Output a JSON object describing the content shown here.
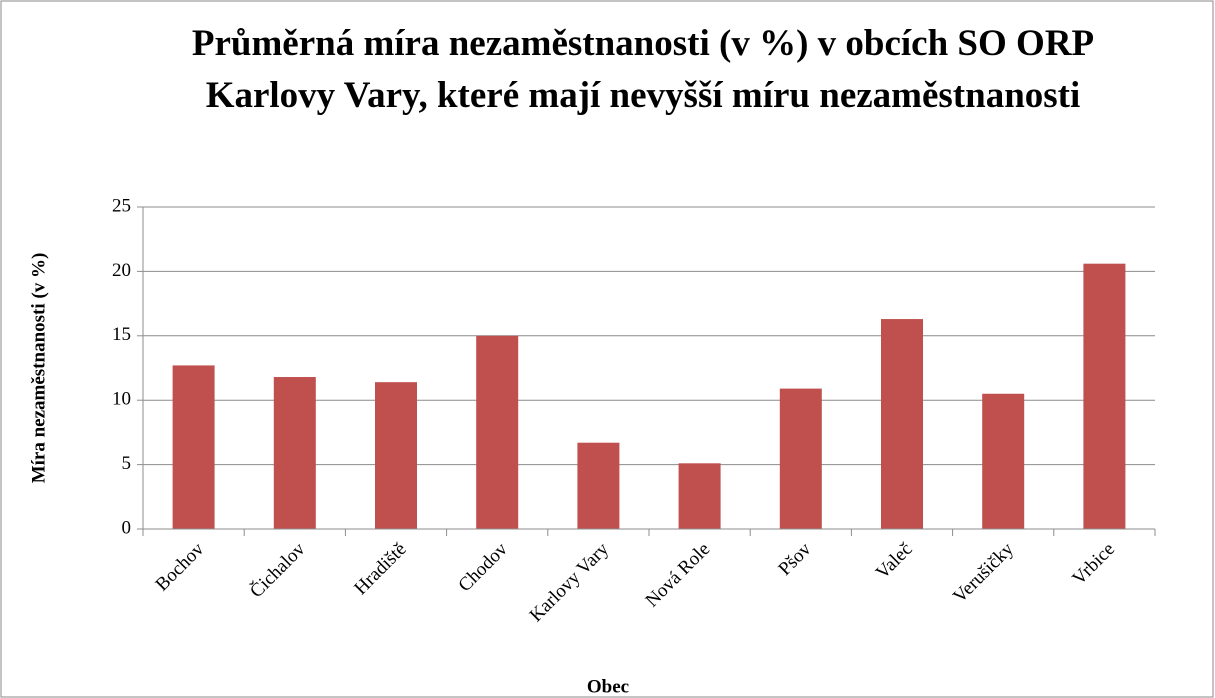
{
  "chart_data": {
    "type": "bar",
    "title": "Průměrná míra nezaměstnanosti (v %) v obcích SO ORP Karlovy Vary, které mají nevyšší míru nezaměstnanosti",
    "x_label": "Obec",
    "y_label": "Míra nezaměstnanosti (v %)",
    "categories": [
      "Bochov",
      "Čichalov",
      "Hradiště",
      "Chodov",
      "Karlovy Vary",
      "Nová Role",
      "Pšov",
      "Valeč",
      "Verušičky",
      "Vrbice"
    ],
    "values": [
      12.7,
      11.8,
      11.4,
      15.0,
      6.7,
      5.1,
      10.9,
      16.3,
      10.5,
      20.6
    ],
    "color": "#c0504d",
    "ylim": [
      0,
      25
    ],
    "yticks": [
      0,
      5,
      10,
      15,
      20,
      25
    ],
    "grid": true
  }
}
